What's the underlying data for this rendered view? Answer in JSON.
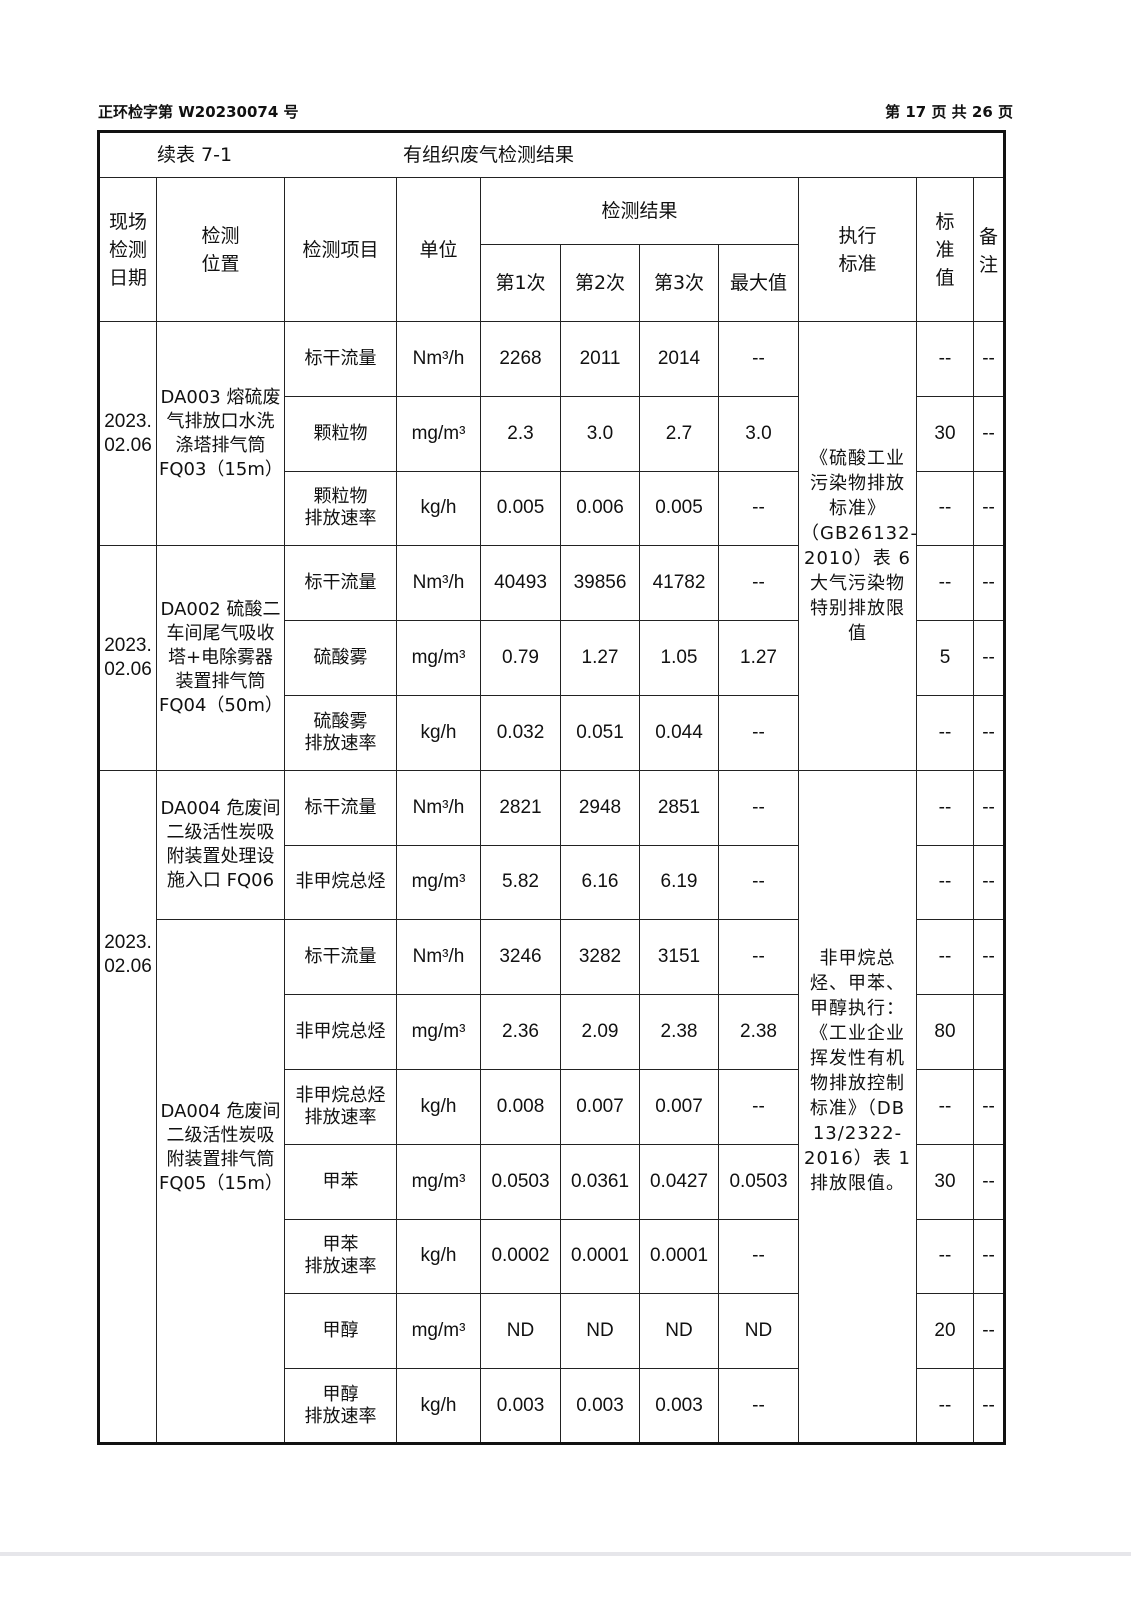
{
  "header": {
    "report_no": "正环检字第 W20230074 号",
    "page": "第 17 页  共 26 页"
  },
  "table": {
    "caption": "续表 7-1",
    "title": "有组织废气检测结果",
    "columns": {
      "date": "现场\n检测\n日期",
      "location": "检测\n位置",
      "item": "检测项目",
      "unit": "单位",
      "results": "检测结果",
      "run1": "第1次",
      "run2": "第2次",
      "run3": "第3次",
      "max": "最大值",
      "standard": "执行\n标准",
      "limit": "标\n准\n值",
      "remark": "备\n注"
    },
    "dates": [
      {
        "text": "2023.\n02.06",
        "rows": 3
      },
      {
        "text": "2023.\n02.06",
        "rows": 3
      },
      {
        "text": "2023.\n02.06",
        "rows": 9
      }
    ],
    "locations": [
      {
        "text": "DA003 熔硫废气排放口水洗涤塔排气筒 FQ03（15m）",
        "rows": 3
      },
      {
        "text": "DA002 硫酸二车间尾气吸收塔+电除雾器装置排气筒 FQ04（50m）",
        "rows": 3
      },
      {
        "text": "DA004 危废间二级活性炭吸附装置处理设施入口 FQ06",
        "rows": 2
      },
      {
        "text": "DA004 危废间二级活性炭吸附装置排气筒 FQ05（15m）",
        "rows": 7
      }
    ],
    "standards": [
      {
        "text": "《硫酸工业污染物排放标准》（GB26132-2010）表 6 大气污染物特别排放限值",
        "rows": 6
      },
      {
        "text": "非甲烷总烃、甲苯、甲醇执行：《工业企业挥发性有机物排放控制标准》（DB 13/2322-2016）表 1 排放限值。",
        "rows": 9
      }
    ],
    "rows": [
      {
        "item": "标干流量",
        "unit": "Nm³/h",
        "r1": "2268",
        "r2": "2011",
        "r3": "2014",
        "max": "--",
        "limit": "--",
        "remark": "--"
      },
      {
        "item": "颗粒物",
        "unit": "mg/m³",
        "r1": "2.3",
        "r2": "3.0",
        "r3": "2.7",
        "max": "3.0",
        "limit": "30",
        "remark": "--"
      },
      {
        "item": "颗粒物\n排放速率",
        "unit": "kg/h",
        "r1": "0.005",
        "r2": "0.006",
        "r3": "0.005",
        "max": "--",
        "limit": "--",
        "remark": "--"
      },
      {
        "item": "标干流量",
        "unit": "Nm³/h",
        "r1": "40493",
        "r2": "39856",
        "r3": "41782",
        "max": "--",
        "limit": "--",
        "remark": "--"
      },
      {
        "item": "硫酸雾",
        "unit": "mg/m³",
        "r1": "0.79",
        "r2": "1.27",
        "r3": "1.05",
        "max": "1.27",
        "limit": "5",
        "remark": "--"
      },
      {
        "item": "硫酸雾\n排放速率",
        "unit": "kg/h",
        "r1": "0.032",
        "r2": "0.051",
        "r3": "0.044",
        "max": "--",
        "limit": "--",
        "remark": "--"
      },
      {
        "item": "标干流量",
        "unit": "Nm³/h",
        "r1": "2821",
        "r2": "2948",
        "r3": "2851",
        "max": "--",
        "limit": "--",
        "remark": "--"
      },
      {
        "item": "非甲烷总烃",
        "unit": "mg/m³",
        "r1": "5.82",
        "r2": "6.16",
        "r3": "6.19",
        "max": "--",
        "limit": "--",
        "remark": "--"
      },
      {
        "item": "标干流量",
        "unit": "Nm³/h",
        "r1": "3246",
        "r2": "3282",
        "r3": "3151",
        "max": "--",
        "limit": "--",
        "remark": "--"
      },
      {
        "item": "非甲烷总烃",
        "unit": "mg/m³",
        "r1": "2.36",
        "r2": "2.09",
        "r3": "2.38",
        "max": "2.38",
        "limit": "80",
        "remark": ""
      },
      {
        "item": "非甲烷总烃\n排放速率",
        "unit": "kg/h",
        "r1": "0.008",
        "r2": "0.007",
        "r3": "0.007",
        "max": "--",
        "limit": "--",
        "remark": "--"
      },
      {
        "item": "甲苯",
        "unit": "mg/m³",
        "r1": "0.0503",
        "r2": "0.0361",
        "r3": "0.0427",
        "max": "0.0503",
        "limit": "30",
        "remark": "--"
      },
      {
        "item": "甲苯\n排放速率",
        "unit": "kg/h",
        "r1": "0.0002",
        "r2": "0.0001",
        "r3": "0.0001",
        "max": "--",
        "limit": "--",
        "remark": "--"
      },
      {
        "item": "甲醇",
        "unit": "mg/m³",
        "r1": "ND",
        "r2": "ND",
        "r3": "ND",
        "max": "ND",
        "limit": "20",
        "remark": "--"
      },
      {
        "item": "甲醇\n排放速率",
        "unit": "kg/h",
        "r1": "0.003",
        "r2": "0.003",
        "r3": "0.003",
        "max": "--",
        "limit": "--",
        "remark": "--"
      }
    ]
  }
}
